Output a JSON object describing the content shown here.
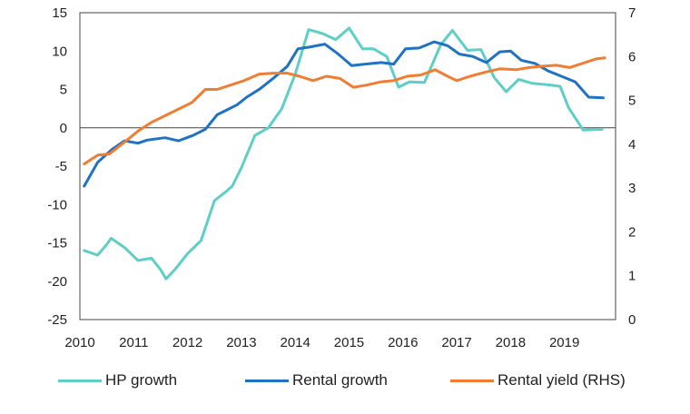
{
  "chart_data": {
    "type": "line",
    "title": "",
    "xlabel": "",
    "ylabel": "",
    "x_ticks": [
      "2010",
      "2011",
      "2012",
      "2013",
      "2014",
      "2015",
      "2016",
      "2017",
      "2018",
      "2019"
    ],
    "xlim": [
      2010,
      2019.95
    ],
    "ylim_left": [
      -25,
      15
    ],
    "ylim_right": [
      0,
      7
    ],
    "y_ticks_left": [
      15,
      10,
      5,
      0,
      -5,
      -10,
      -15,
      -20,
      -25
    ],
    "y_ticks_right": [
      7,
      6,
      5,
      4,
      3,
      2,
      1,
      0
    ],
    "grid": false,
    "zero_line": true,
    "legend_position": "bottom",
    "series": [
      {
        "name": "HP growth",
        "axis": "left",
        "color": "#5ecfc7",
        "points": [
          [
            2010.08,
            -16.0
          ],
          [
            2010.33,
            -16.6
          ],
          [
            2010.5,
            -15.2
          ],
          [
            2010.58,
            -14.4
          ],
          [
            2010.83,
            -15.6
          ],
          [
            2011.08,
            -17.3
          ],
          [
            2011.33,
            -17.0
          ],
          [
            2011.5,
            -18.5
          ],
          [
            2011.6,
            -19.7
          ],
          [
            2011.75,
            -18.6
          ],
          [
            2012.0,
            -16.4
          ],
          [
            2012.25,
            -14.7
          ],
          [
            2012.5,
            -9.5
          ],
          [
            2012.7,
            -8.4
          ],
          [
            2012.83,
            -7.6
          ],
          [
            2013.0,
            -5.2
          ],
          [
            2013.25,
            -1.0
          ],
          [
            2013.5,
            0.0
          ],
          [
            2013.75,
            2.5
          ],
          [
            2014.0,
            7.0
          ],
          [
            2014.25,
            12.8
          ],
          [
            2014.5,
            12.3
          ],
          [
            2014.75,
            11.5
          ],
          [
            2015.0,
            13.0
          ],
          [
            2015.25,
            10.3
          ],
          [
            2015.45,
            10.3
          ],
          [
            2015.7,
            9.3
          ],
          [
            2015.92,
            5.3
          ],
          [
            2016.12,
            6.0
          ],
          [
            2016.4,
            5.9
          ],
          [
            2016.7,
            10.8
          ],
          [
            2016.92,
            12.7
          ],
          [
            2017.2,
            10.1
          ],
          [
            2017.45,
            10.2
          ],
          [
            2017.7,
            6.5
          ],
          [
            2017.92,
            4.7
          ],
          [
            2018.15,
            6.3
          ],
          [
            2018.4,
            5.8
          ],
          [
            2018.7,
            5.6
          ],
          [
            2018.92,
            5.4
          ],
          [
            2019.08,
            2.6
          ],
          [
            2019.35,
            -0.3
          ],
          [
            2019.7,
            -0.2
          ]
        ]
      },
      {
        "name": "Rental growth",
        "axis": "left",
        "color": "#1f72c4",
        "points": [
          [
            2010.08,
            -7.6
          ],
          [
            2010.33,
            -4.5
          ],
          [
            2010.6,
            -2.8
          ],
          [
            2010.83,
            -1.7
          ],
          [
            2011.08,
            -2.0
          ],
          [
            2011.25,
            -1.6
          ],
          [
            2011.58,
            -1.3
          ],
          [
            2011.83,
            -1.7
          ],
          [
            2012.1,
            -1.0
          ],
          [
            2012.33,
            -0.2
          ],
          [
            2012.55,
            1.7
          ],
          [
            2012.75,
            2.4
          ],
          [
            2012.92,
            3.0
          ],
          [
            2013.1,
            4.0
          ],
          [
            2013.35,
            5.1
          ],
          [
            2013.6,
            6.5
          ],
          [
            2013.85,
            8.0
          ],
          [
            2014.05,
            10.3
          ],
          [
            2014.25,
            10.5
          ],
          [
            2014.55,
            10.9
          ],
          [
            2014.8,
            9.6
          ],
          [
            2015.05,
            8.1
          ],
          [
            2015.3,
            8.3
          ],
          [
            2015.6,
            8.5
          ],
          [
            2015.83,
            8.3
          ],
          [
            2016.05,
            10.3
          ],
          [
            2016.3,
            10.4
          ],
          [
            2016.58,
            11.2
          ],
          [
            2016.83,
            10.7
          ],
          [
            2017.05,
            9.6
          ],
          [
            2017.3,
            9.3
          ],
          [
            2017.55,
            8.5
          ],
          [
            2017.8,
            9.9
          ],
          [
            2018.0,
            10.0
          ],
          [
            2018.2,
            8.8
          ],
          [
            2018.45,
            8.4
          ],
          [
            2018.7,
            7.4
          ],
          [
            2018.95,
            6.7
          ],
          [
            2019.2,
            6.0
          ],
          [
            2019.45,
            4.0
          ],
          [
            2019.72,
            3.9
          ]
        ]
      },
      {
        "name": "Rental yield (RHS)",
        "axis": "right",
        "color": "#f07d31",
        "points": [
          [
            2010.08,
            3.55
          ],
          [
            2010.33,
            3.75
          ],
          [
            2010.55,
            3.78
          ],
          [
            2010.83,
            4.05
          ],
          [
            2011.08,
            4.3
          ],
          [
            2011.33,
            4.5
          ],
          [
            2011.58,
            4.65
          ],
          [
            2011.83,
            4.8
          ],
          [
            2012.08,
            4.95
          ],
          [
            2012.33,
            5.25
          ],
          [
            2012.55,
            5.25
          ],
          [
            2012.8,
            5.35
          ],
          [
            2013.05,
            5.45
          ],
          [
            2013.33,
            5.6
          ],
          [
            2013.6,
            5.62
          ],
          [
            2013.85,
            5.62
          ],
          [
            2014.08,
            5.55
          ],
          [
            2014.33,
            5.45
          ],
          [
            2014.58,
            5.55
          ],
          [
            2014.83,
            5.5
          ],
          [
            2015.08,
            5.3
          ],
          [
            2015.33,
            5.35
          ],
          [
            2015.58,
            5.42
          ],
          [
            2015.83,
            5.45
          ],
          [
            2016.08,
            5.55
          ],
          [
            2016.33,
            5.58
          ],
          [
            2016.6,
            5.7
          ],
          [
            2016.83,
            5.55
          ],
          [
            2017.0,
            5.45
          ],
          [
            2017.25,
            5.55
          ],
          [
            2017.55,
            5.65
          ],
          [
            2017.8,
            5.72
          ],
          [
            2018.1,
            5.7
          ],
          [
            2018.35,
            5.75
          ],
          [
            2018.6,
            5.78
          ],
          [
            2018.85,
            5.8
          ],
          [
            2019.1,
            5.75
          ],
          [
            2019.35,
            5.85
          ],
          [
            2019.6,
            5.95
          ],
          [
            2019.75,
            5.97
          ]
        ]
      }
    ]
  }
}
